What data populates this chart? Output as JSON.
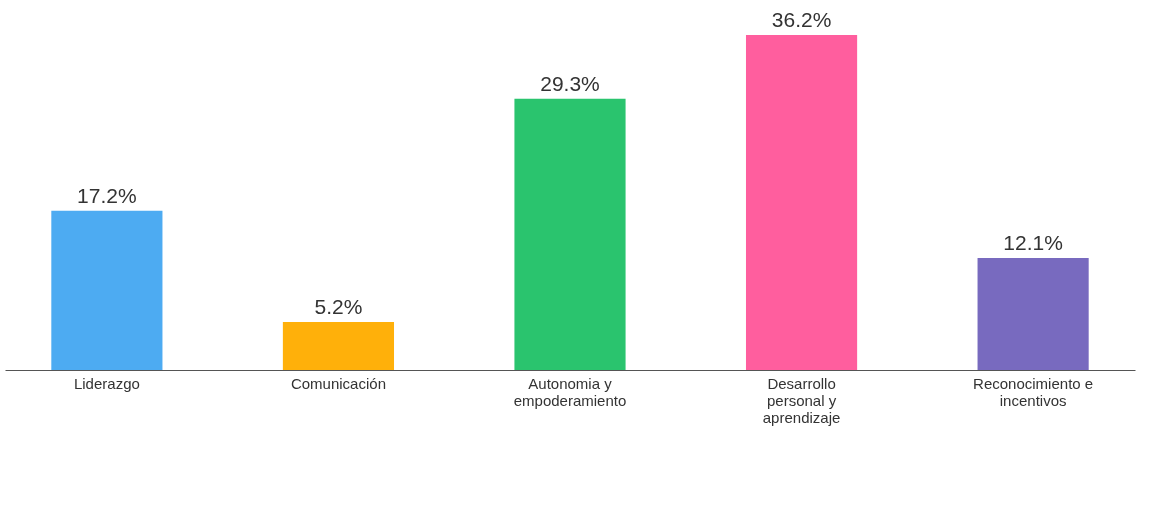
{
  "chart_data": {
    "type": "bar",
    "categories": [
      "Liderazgo",
      "Comunicación",
      "Autonomia y empoderamiento",
      "Desarrollo personal y aprendizaje",
      "Reconocimiento e incentivos"
    ],
    "values": [
      17.2,
      5.2,
      29.3,
      36.2,
      12.1
    ],
    "colors": [
      "#4dabf2",
      "#ffb00a",
      "#2ac46e",
      "#ff5e9e",
      "#786abf"
    ],
    "value_labels": [
      "17.2%",
      "5.2%",
      "29.3%",
      "36.2%",
      "12.1%"
    ]
  }
}
